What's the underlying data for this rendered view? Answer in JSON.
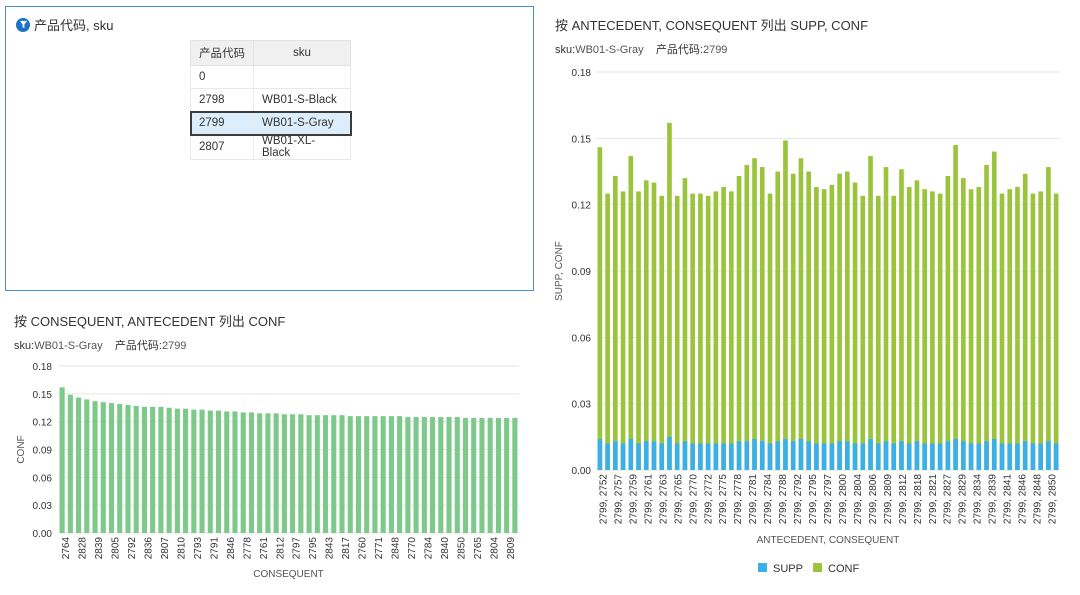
{
  "filter": {
    "title": "产品代码, sku",
    "headers": [
      "产品代码",
      "sku"
    ],
    "rows": [
      [
        "0",
        ""
      ],
      [
        "2798",
        "WB01-S-Black"
      ],
      [
        "2799",
        "WB01-S-Gray"
      ],
      [
        "2807",
        "WB01-XL-Black"
      ]
    ],
    "selected_index": 2
  },
  "left_chart": {
    "title": "按 CONSEQUENT, ANTECEDENT 列出 CONF",
    "subtitle_k1": "sku:",
    "subtitle_v1": "WB01-S-Gray",
    "subtitle_k2": "产品代码:",
    "subtitle_v2": "2799"
  },
  "right_chart": {
    "title": "按 ANTECEDENT, CONSEQUENT 列出 SUPP, CONF",
    "subtitle_k1": "sku:",
    "subtitle_v1": "WB01-S-Gray",
    "subtitle_k2": "产品代码:",
    "subtitle_v2": "2799"
  },
  "colors": {
    "conf_left": "#7cc98a",
    "supp": "#3bb0e6",
    "conf_right": "#9ac43c",
    "grid": "#e6e6e6",
    "filter_icon": "#1a73c8"
  },
  "chart_data": [
    {
      "type": "bar",
      "title": "按 CONSEQUENT, ANTECEDENT 列出 CONF",
      "xlabel": "CONSEQUENT",
      "ylabel": "CONF",
      "ylim": [
        0,
        0.18
      ],
      "yticks": [
        "0.18",
        "0.15",
        "0.12",
        "0.09",
        "0.06",
        "0.03",
        "0.00"
      ],
      "tick_labels": [
        "2764",
        "2828",
        "2839",
        "2805",
        "2792",
        "2836",
        "2807",
        "2810",
        "2793",
        "2791",
        "2846",
        "2778",
        "2761",
        "2812",
        "2797",
        "2795",
        "2843",
        "2817",
        "2760",
        "2771",
        "2848",
        "2770",
        "2784",
        "2840",
        "2850",
        "2765",
        "2804",
        "2809"
      ],
      "values": [
        0.157,
        0.149,
        0.146,
        0.144,
        0.142,
        0.141,
        0.14,
        0.139,
        0.138,
        0.137,
        0.136,
        0.136,
        0.136,
        0.135,
        0.134,
        0.134,
        0.133,
        0.133,
        0.132,
        0.132,
        0.131,
        0.131,
        0.13,
        0.13,
        0.129,
        0.129,
        0.129,
        0.128,
        0.128,
        0.128,
        0.127,
        0.127,
        0.127,
        0.127,
        0.127,
        0.126,
        0.126,
        0.126,
        0.126,
        0.126,
        0.126,
        0.126,
        0.125,
        0.125,
        0.125,
        0.125,
        0.125,
        0.125,
        0.125,
        0.124,
        0.124,
        0.124,
        0.124,
        0.124,
        0.124,
        0.124
      ]
    },
    {
      "type": "bar",
      "title": "按 ANTECEDENT, CONSEQUENT 列出 SUPP, CONF",
      "xlabel": "ANTECEDENT, CONSEQUENT",
      "ylabel": "SUPP, CONF",
      "ylim": [
        0,
        0.18
      ],
      "yticks": [
        "0.18",
        "0.15",
        "0.12",
        "0.09",
        "0.06",
        "0.03",
        "0.00"
      ],
      "tick_labels": [
        "2799, 2752",
        "2799, 2757",
        "2799, 2759",
        "2799, 2761",
        "2799, 2763",
        "2799, 2765",
        "2799, 2770",
        "2799, 2772",
        "2799, 2775",
        "2799, 2778",
        "2799, 2781",
        "2799, 2784",
        "2799, 2788",
        "2799, 2792",
        "2799, 2795",
        "2799, 2797",
        "2799, 2800",
        "2799, 2804",
        "2799, 2806",
        "2799, 2809",
        "2799, 2812",
        "2799, 2818",
        "2799, 2821",
        "2799, 2827",
        "2799, 2829",
        "2799, 2834",
        "2799, 2839",
        "2799, 2841",
        "2799, 2846",
        "2799, 2848",
        "2799, 2850"
      ],
      "legend": [
        "SUPP",
        "CONF"
      ],
      "series": [
        {
          "name": "CONF",
          "values": [
            0.146,
            0.125,
            0.133,
            0.126,
            0.142,
            0.126,
            0.131,
            0.13,
            0.124,
            0.157,
            0.124,
            0.132,
            0.125,
            0.125,
            0.124,
            0.126,
            0.128,
            0.126,
            0.133,
            0.138,
            0.141,
            0.137,
            0.125,
            0.135,
            0.149,
            0.134,
            0.141,
            0.135,
            0.128,
            0.127,
            0.129,
            0.134,
            0.135,
            0.13,
            0.124,
            0.142,
            0.124,
            0.137,
            0.124,
            0.136,
            0.128,
            0.131,
            0.127,
            0.126,
            0.125,
            0.133,
            0.147,
            0.132,
            0.127,
            0.128,
            0.138,
            0.144,
            0.125,
            0.127,
            0.128,
            0.134,
            0.125,
            0.126,
            0.137,
            0.125
          ]
        },
        {
          "name": "SUPP",
          "values": [
            0.014,
            0.012,
            0.013,
            0.012,
            0.014,
            0.012,
            0.013,
            0.013,
            0.012,
            0.015,
            0.012,
            0.013,
            0.012,
            0.012,
            0.012,
            0.012,
            0.012,
            0.012,
            0.013,
            0.013,
            0.014,
            0.013,
            0.012,
            0.013,
            0.014,
            0.013,
            0.014,
            0.013,
            0.012,
            0.012,
            0.012,
            0.013,
            0.013,
            0.012,
            0.012,
            0.014,
            0.012,
            0.013,
            0.012,
            0.013,
            0.012,
            0.013,
            0.012,
            0.012,
            0.012,
            0.013,
            0.014,
            0.013,
            0.012,
            0.012,
            0.013,
            0.014,
            0.012,
            0.012,
            0.012,
            0.013,
            0.012,
            0.012,
            0.013,
            0.012
          ]
        }
      ]
    }
  ]
}
